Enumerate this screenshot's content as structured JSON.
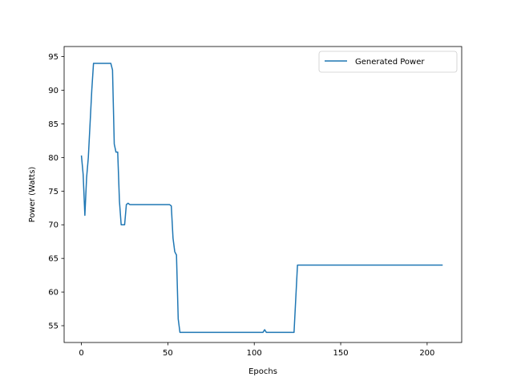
{
  "chart_data": {
    "type": "line",
    "title": "",
    "xlabel": "Epochs",
    "ylabel": "Power (Watts)",
    "xlim": [
      -10,
      220
    ],
    "ylim": [
      52.5,
      96.5
    ],
    "xticks": [
      0,
      50,
      100,
      150,
      200
    ],
    "yticks": [
      55,
      60,
      65,
      70,
      75,
      80,
      85,
      90,
      95
    ],
    "grid": false,
    "legend": {
      "position": "top-right"
    },
    "series": [
      {
        "name": "Generated Power",
        "color": "#1f77b4",
        "x": [
          0,
          1,
          2,
          3,
          4,
          5,
          6,
          7,
          8,
          10,
          12,
          14,
          16,
          17,
          18,
          19,
          20,
          21,
          22,
          23,
          24,
          25,
          26,
          27,
          28,
          30,
          35,
          40,
          45,
          50,
          51,
          52,
          53,
          54,
          55,
          56,
          57,
          60,
          70,
          80,
          90,
          100,
          104,
          105,
          106,
          107,
          110,
          115,
          120,
          123,
          124,
          125,
          130,
          140,
          150,
          160,
          170,
          180,
          190,
          200,
          209
        ],
        "y": [
          80.3,
          77.5,
          71.4,
          77.0,
          80.0,
          85.0,
          90.0,
          94.0,
          94.0,
          94.0,
          94.0,
          94.0,
          94.0,
          94.0,
          93.0,
          82.0,
          80.8,
          80.8,
          73.5,
          70.0,
          70.0,
          70.0,
          73.0,
          73.2,
          73.0,
          73.0,
          73.0,
          73.0,
          73.0,
          73.0,
          73.0,
          72.8,
          68.0,
          66.0,
          65.5,
          56.0,
          54.0,
          54.0,
          54.0,
          54.0,
          54.0,
          54.0,
          54.0,
          54.0,
          54.4,
          54.0,
          54.0,
          54.0,
          54.0,
          54.0,
          59.0,
          64.0,
          64.0,
          64.0,
          64.0,
          64.0,
          64.0,
          64.0,
          64.0,
          64.0,
          64.0
        ]
      }
    ]
  }
}
